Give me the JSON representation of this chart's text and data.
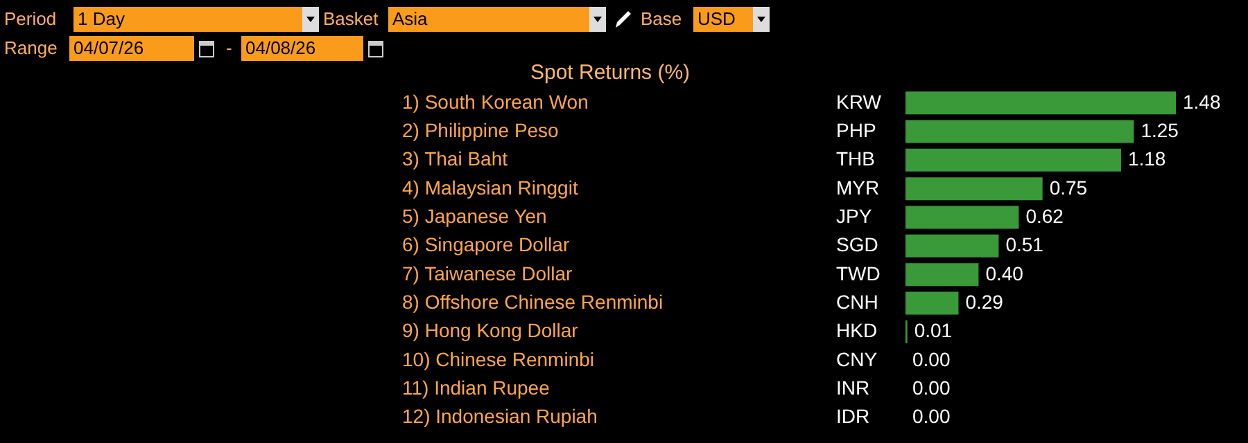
{
  "chart_data": {
    "type": "bar",
    "orientation": "horizontal",
    "title": "Spot Returns (%)",
    "categories": [
      "1) South Korean Won",
      "2) Philippine Peso",
      "3) Thai Baht",
      "4) Malaysian Ringgit",
      "5) Japanese Yen",
      "6) Singapore Dollar",
      "7) Taiwanese Dollar",
      "8) Offshore Chinese Renminbi",
      "9) Hong Kong Dollar",
      "10) Chinese Renminbi",
      "11) Indian Rupee",
      "12) Indonesian Rupiah"
    ],
    "y2_categories": [
      "KRW",
      "PHP",
      "THB",
      "MYR",
      "JPY",
      "SGD",
      "TWD",
      "CNH",
      "HKD",
      "CNY",
      "INR",
      "IDR"
    ],
    "values": [
      1.48,
      1.25,
      1.18,
      0.75,
      0.62,
      0.51,
      0.4,
      0.29,
      0.01,
      0,
      0,
      0
    ],
    "value_labels": [
      "1.48",
      "1.25",
      "1.18",
      "0.75",
      "0.62",
      "0.51",
      "0.40",
      "0.29",
      "0.01",
      "0.00",
      "0.00",
      "0.00"
    ],
    "color": "#3a9a3a",
    "annotations": [
      "Period",
      "1 Day",
      "Basket",
      "Asia",
      "Base",
      "USD",
      "Range",
      "04/07/26",
      "-",
      "04/08/26"
    ]
  }
}
